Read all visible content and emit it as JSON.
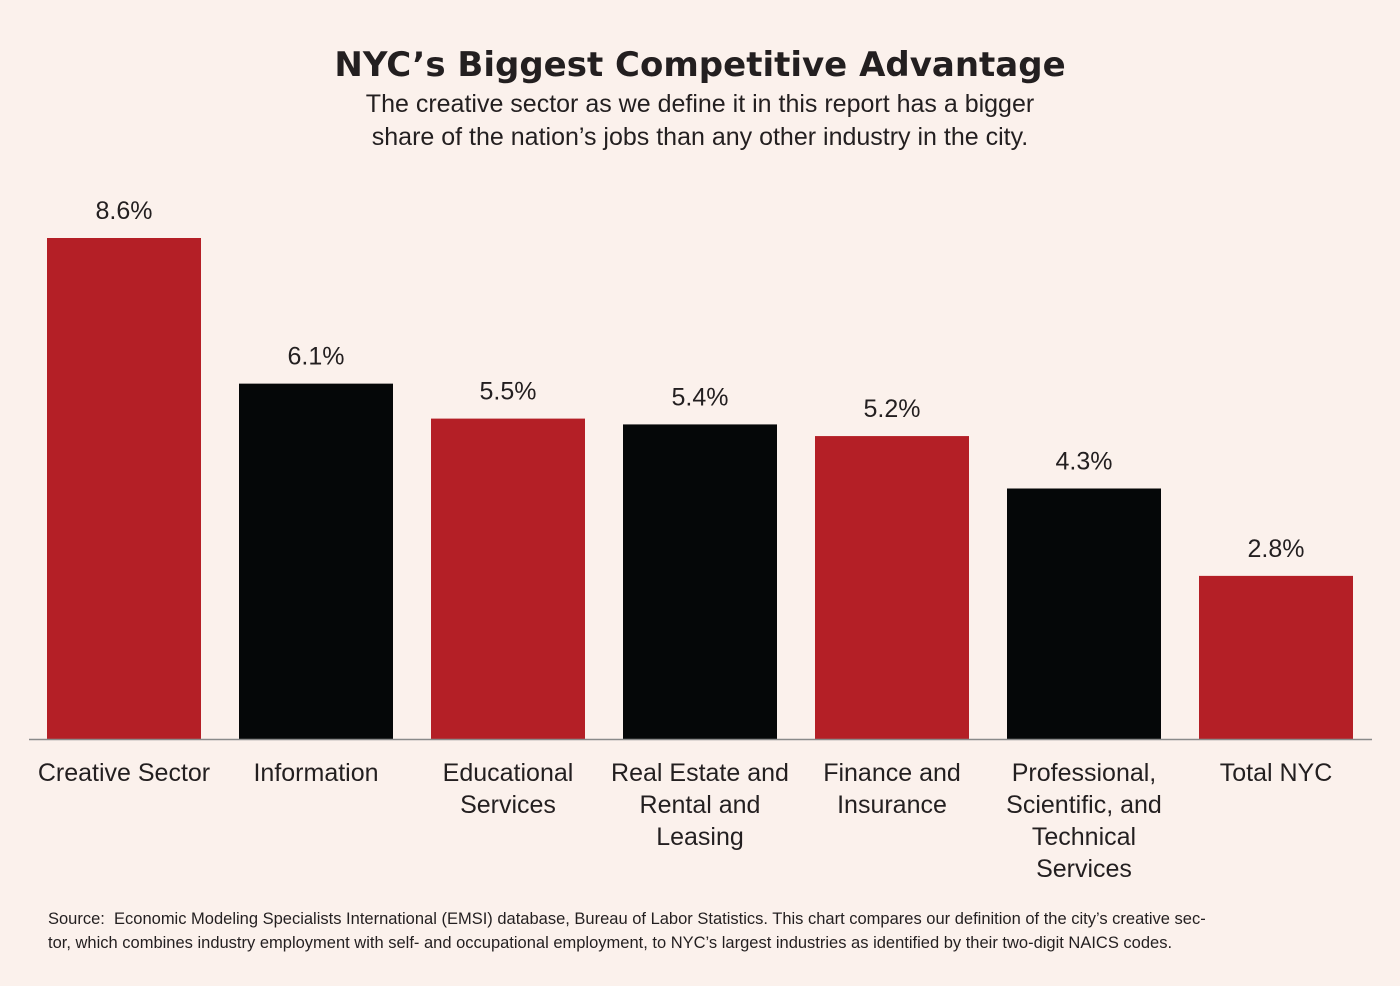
{
  "title": "NYC’s Biggest Competitive Advantage",
  "subtitle_lines": [
    "The creative sector as we define it in this report has a bigger",
    "share of the nation’s jobs than any other industry in the city."
  ],
  "colors": {
    "background": "#fbf1ec",
    "red": "#b41f26",
    "black": "#050708",
    "axis": "#8a8a8a"
  },
  "chart_data": {
    "type": "bar",
    "title": "NYC’s Biggest Competitive Advantage",
    "xlabel": "",
    "ylabel": "",
    "ylim": [
      0,
      8.6
    ],
    "grid": false,
    "categories": [
      "Creative Sector",
      "Information",
      "Educational Services",
      "Real Estate and Rental and Leasing",
      "Finance and Insurance",
      "Professional, Scientific, and Technical Services",
      "Total NYC"
    ],
    "category_lines": [
      [
        "Creative Sector"
      ],
      [
        "Information"
      ],
      [
        "Educational",
        "Services"
      ],
      [
        "Real Estate and",
        "Rental and",
        "Leasing"
      ],
      [
        "Finance and",
        "Insurance"
      ],
      [
        "Professional,",
        "Scientific, and",
        "Technical",
        "Services"
      ],
      [
        "Total NYC"
      ]
    ],
    "values": [
      8.6,
      6.1,
      5.5,
      5.4,
      5.2,
      4.3,
      2.8
    ],
    "value_labels": [
      "8.6%",
      "6.1%",
      "5.5%",
      "5.4%",
      "5.2%",
      "4.3%",
      "2.8%"
    ],
    "bar_colors": [
      "#b41f26",
      "#050708",
      "#b41f26",
      "#050708",
      "#b41f26",
      "#050708",
      "#b41f26"
    ]
  },
  "source_lines": [
    "Source:  Economic Modeling Specialists International (EMSI) database, Bureau of Labor Statistics. This chart compares our definition of the city’s creative sec-",
    "tor, which combines industry employment with self- and occupational employment, to NYC’s largest industries as identified by their two-digit NAICS codes."
  ]
}
